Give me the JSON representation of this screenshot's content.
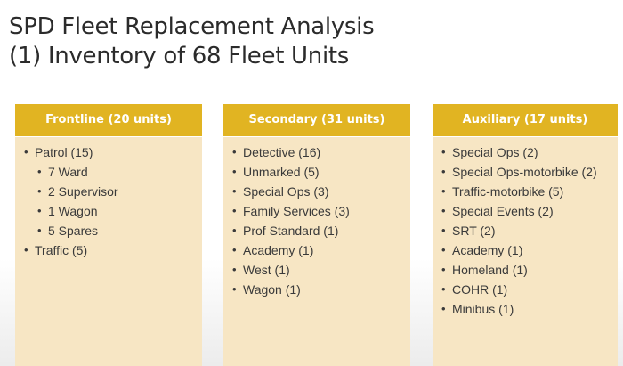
{
  "title": {
    "line1": "SPD Fleet Replacement Analysis",
    "line2": "(1) Inventory of 68 Fleet Units"
  },
  "columns": [
    {
      "header": "Frontline (20 units)",
      "items": [
        {
          "text": "Patrol (15)",
          "level": 1
        },
        {
          "text": "7 Ward",
          "level": 2
        },
        {
          "text": "2 Supervisor",
          "level": 2
        },
        {
          "text": "1 Wagon",
          "level": 2
        },
        {
          "text": "5 Spares",
          "level": 2
        },
        {
          "text": "Traffic (5)",
          "level": 1
        }
      ]
    },
    {
      "header": "Secondary (31 units)",
      "items": [
        {
          "text": "Detective (16)",
          "level": 1
        },
        {
          "text": "Unmarked (5)",
          "level": 1
        },
        {
          "text": "Special Ops (3)",
          "level": 1
        },
        {
          "text": "Family Services (3)",
          "level": 1
        },
        {
          "text": "Prof Standard (1)",
          "level": 1
        },
        {
          "text": "Academy (1)",
          "level": 1
        },
        {
          "text": "West (1)",
          "level": 1
        },
        {
          "text": "Wagon (1)",
          "level": 1
        }
      ]
    },
    {
      "header": "Auxiliary (17 units)",
      "items": [
        {
          "text": "Special Ops  (2)",
          "level": 1
        },
        {
          "text": "Special Ops-motorbike (2)",
          "level": 1,
          "wrap": true
        },
        {
          "text": "Traffic-motorbike (5)",
          "level": 1
        },
        {
          "text": "Special Events (2)",
          "level": 1
        },
        {
          "text": "SRT (2)",
          "level": 1
        },
        {
          "text": "Academy (1)",
          "level": 1
        },
        {
          "text": "Homeland (1)",
          "level": 1
        },
        {
          "text": "COHR (1)",
          "level": 1
        },
        {
          "text": "Minibus (1)",
          "level": 1
        }
      ]
    }
  ],
  "colors": {
    "header_bg": "#e1b422",
    "body_bg": "#f7e6c4"
  }
}
